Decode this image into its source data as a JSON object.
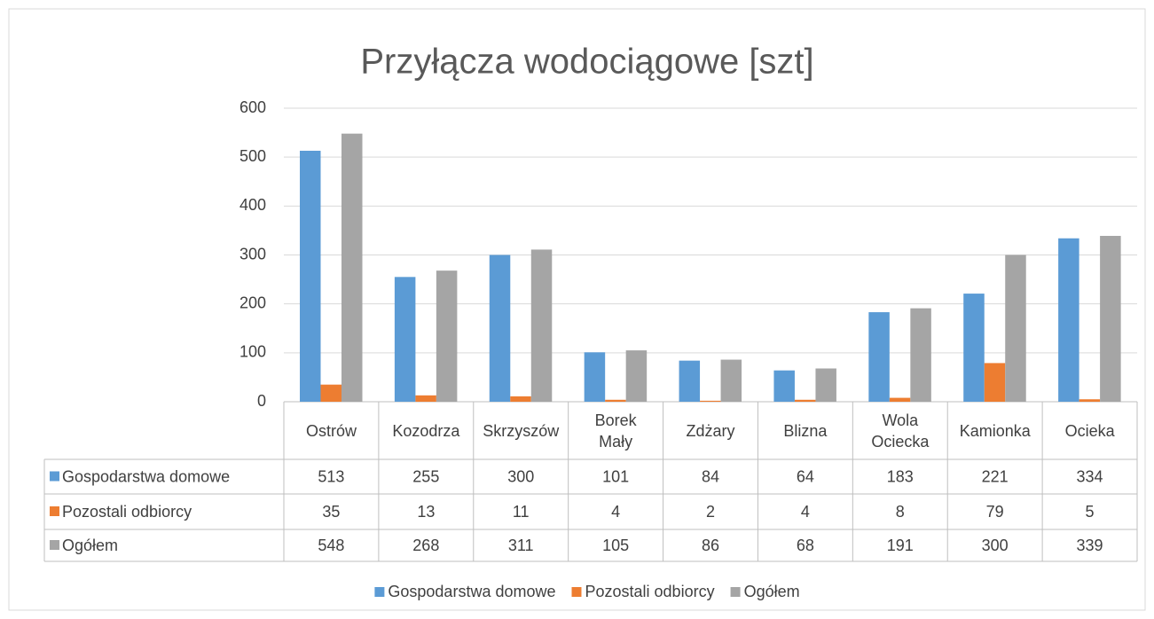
{
  "chart_data": {
    "type": "bar",
    "title": "Przyłącza wodociągowe [szt]",
    "categories": [
      "Ostrów",
      "Kozodrza",
      "Skrzyszów",
      "Borek Mały",
      "Zdżary",
      "Blizna",
      "Wola Ociecka",
      "Kamionka",
      "Ocieka"
    ],
    "series": [
      {
        "name": "Gospodarstwa domowe",
        "color": "#5b9bd5",
        "values": [
          513,
          255,
          300,
          101,
          84,
          64,
          183,
          221,
          334
        ]
      },
      {
        "name": "Pozostali odbiorcy",
        "color": "#ed7d31",
        "values": [
          35,
          13,
          11,
          4,
          2,
          4,
          8,
          79,
          5
        ]
      },
      {
        "name": "Ogółem",
        "color": "#a5a5a5",
        "values": [
          548,
          268,
          311,
          105,
          86,
          68,
          191,
          300,
          339
        ]
      }
    ],
    "ylim": [
      0,
      600
    ],
    "yticks": [
      0,
      100,
      200,
      300,
      400,
      500,
      600
    ],
    "grid": true,
    "legend": "bottom"
  }
}
